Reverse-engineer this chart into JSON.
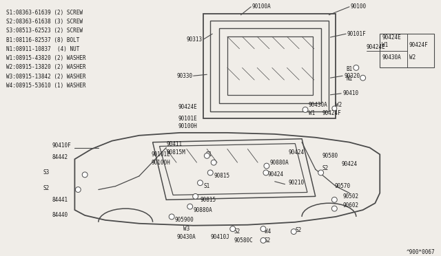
{
  "bg_color": "#f0ede8",
  "line_color": "#4a4a4a",
  "text_color": "#1a1a1a",
  "title_bottom": "^900*0067",
  "legend_items": [
    "S1:08363-61639 (2) SCREW",
    "S2:08363-61638 (3) SCREW",
    "S3:08513-62523 (2) SCREW",
    "B1:08116-82537 (8) BOLT",
    "N1:08911-10837  (4) NUT",
    "W1:08915-43820 (2) WASHER",
    "W2:08915-13820 (2) WASHER",
    "W3:08915-13842 (2) WASHER",
    "W4:08915-53610 (1) WASHER"
  ],
  "fig_width": 6.4,
  "fig_height": 3.72,
  "dpi": 100
}
